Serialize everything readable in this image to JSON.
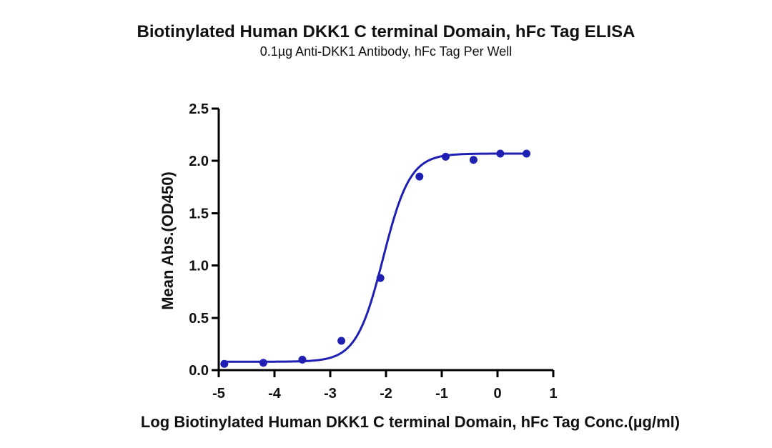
{
  "chart_data": {
    "type": "scatter",
    "title": "Biotinylated Human DKK1 C terminal Domain, hFc Tag ELISA",
    "subtitle": "0.1µg Anti-DKK1 Antibody, hFc Tag Per Well",
    "xlabel": "Log Biotinylated Human DKK1 C terminal Domain, hFc Tag Conc.(µg/ml)",
    "ylabel": "Mean Abs.(OD450)",
    "xlim": [
      -5,
      1
    ],
    "ylim": [
      0,
      2.5
    ],
    "x_ticks": [
      -5,
      -4,
      -3,
      -2,
      -1,
      0,
      1
    ],
    "x_tick_labels": [
      "-5",
      "-4",
      "-3",
      "-2",
      "-1",
      "0",
      "1"
    ],
    "y_ticks": [
      0,
      0.5,
      1,
      1.5,
      2,
      2.5
    ],
    "y_tick_labels": [
      "0.0",
      "0.5",
      "1.0",
      "1.5",
      "2.0",
      "2.5"
    ],
    "grid": false,
    "legend": "none",
    "series": [
      {
        "color": "#1f1fb3",
        "points": [
          {
            "x": -4.9,
            "y": 0.06
          },
          {
            "x": -4.2,
            "y": 0.07
          },
          {
            "x": -3.5,
            "y": 0.1
          },
          {
            "x": -2.8,
            "y": 0.28
          },
          {
            "x": -2.1,
            "y": 0.88
          },
          {
            "x": -1.4,
            "y": 1.85
          },
          {
            "x": -0.93,
            "y": 2.04
          },
          {
            "x": -0.43,
            "y": 2.01
          },
          {
            "x": 0.05,
            "y": 2.07
          },
          {
            "x": 0.52,
            "y": 2.07
          }
        ],
        "fit": {
          "bottom": 0.08,
          "top": 2.07,
          "log_ec50": -2.05,
          "hill_slope": 1.8,
          "x_range": [
            -4.9,
            0.52
          ]
        }
      }
    ]
  }
}
